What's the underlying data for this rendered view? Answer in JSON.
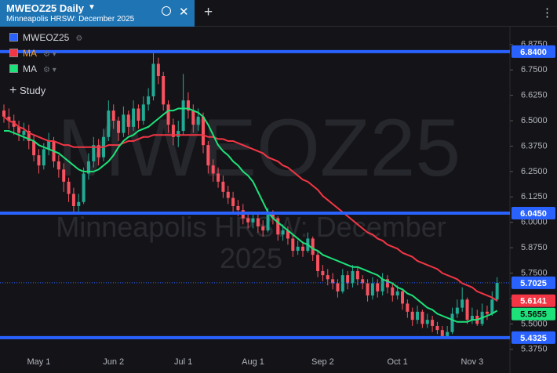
{
  "header": {
    "symbol_title": "MWEOZ25 Daily",
    "subtitle": "Minneapolis HRSW: December 2025"
  },
  "legend": {
    "study": "Study"
  },
  "watermark": {
    "symbol": "MWEOZ25",
    "name": "Minneapolis HRSW: December 2025"
  },
  "chart_data": {
    "type": "candlestick",
    "categories": [
      null,
      null,
      null,
      null,
      null,
      null,
      null,
      "May 1",
      null,
      null,
      null,
      null,
      null,
      null,
      null,
      null,
      null,
      null,
      null,
      null,
      null,
      null,
      "Jun 2",
      null,
      null,
      null,
      null,
      null,
      null,
      null,
      null,
      null,
      null,
      null,
      null,
      null,
      "Jul 1",
      null,
      null,
      null,
      null,
      null,
      null,
      null,
      null,
      null,
      null,
      null,
      null,
      null,
      "Aug 1",
      null,
      null,
      null,
      null,
      null,
      null,
      null,
      null,
      null,
      null,
      null,
      null,
      null,
      "Sep 2",
      null,
      null,
      null,
      null,
      null,
      null,
      null,
      null,
      null,
      null,
      null,
      null,
      null,
      null,
      "Oct 1",
      null,
      null,
      null,
      null,
      null,
      null,
      null,
      null,
      null,
      null,
      null,
      null,
      null,
      null,
      "Nov 3",
      null,
      null,
      null,
      null,
      null
    ],
    "up_color": "#22ab94",
    "down_color": "#f7525f",
    "series": [
      {
        "name": "MWEOZ25",
        "color": "#2962ff",
        "open": [
          6.55,
          6.52,
          6.5,
          6.47,
          6.43,
          6.45,
          6.4,
          6.33,
          6.28,
          6.36,
          6.4,
          6.3,
          6.26,
          6.2,
          6.14,
          6.08,
          6.1,
          6.24,
          6.3,
          6.38,
          6.32,
          6.42,
          6.55,
          6.5,
          6.44,
          6.53,
          6.47,
          6.56,
          6.5,
          6.58,
          6.62,
          6.78,
          6.72,
          6.58,
          6.48,
          6.42,
          6.45,
          6.6,
          6.55,
          6.48,
          6.52,
          6.38,
          6.28,
          6.24,
          6.2,
          6.15,
          6.12,
          6.08,
          6.06,
          6.02,
          6.0,
          6.02,
          5.98,
          5.96,
          6.04,
          6.02,
          5.94,
          5.96,
          5.92,
          5.86,
          5.88,
          5.86,
          5.92,
          5.84,
          5.76,
          5.74,
          5.72,
          5.7,
          5.66,
          5.74,
          5.7,
          5.76,
          5.72,
          5.7,
          5.64,
          5.7,
          5.66,
          5.72,
          5.68,
          5.64,
          5.66,
          5.6,
          5.56,
          5.52,
          5.56,
          5.5,
          5.52,
          5.49,
          5.47,
          5.44,
          5.46,
          5.55,
          5.58,
          5.62,
          5.52,
          5.54,
          5.5,
          5.56,
          5.55,
          5.62
        ],
        "high": [
          6.58,
          6.56,
          6.53,
          6.5,
          6.49,
          6.48,
          6.43,
          6.36,
          6.39,
          6.44,
          6.42,
          6.33,
          6.29,
          6.22,
          6.17,
          6.14,
          6.27,
          6.34,
          6.42,
          6.41,
          6.46,
          6.6,
          6.58,
          6.52,
          6.57,
          6.55,
          6.6,
          6.58,
          6.62,
          6.66,
          6.84,
          6.81,
          6.74,
          6.6,
          6.51,
          6.5,
          6.73,
          6.64,
          6.58,
          6.56,
          6.54,
          6.4,
          6.31,
          6.27,
          6.23,
          6.18,
          6.15,
          6.11,
          6.09,
          6.05,
          6.05,
          6.04,
          6.01,
          6.07,
          6.06,
          6.03,
          5.99,
          5.98,
          5.94,
          5.91,
          5.9,
          5.95,
          5.93,
          5.86,
          5.79,
          5.77,
          5.75,
          5.72,
          5.77,
          5.76,
          5.79,
          5.78,
          5.74,
          5.72,
          5.73,
          5.72,
          5.75,
          5.74,
          5.7,
          5.69,
          5.67,
          5.62,
          5.58,
          5.59,
          5.57,
          5.55,
          5.54,
          5.51,
          5.49,
          5.49,
          5.58,
          5.62,
          5.68,
          5.63,
          5.58,
          5.57,
          5.6,
          5.59,
          5.66,
          5.73
        ],
        "low": [
          6.49,
          6.46,
          6.43,
          6.4,
          6.4,
          6.36,
          6.3,
          6.24,
          6.26,
          6.33,
          6.27,
          6.22,
          6.15,
          6.1,
          6.05,
          6.05,
          6.09,
          6.21,
          6.27,
          6.28,
          6.3,
          6.4,
          6.46,
          6.4,
          6.42,
          6.43,
          6.45,
          6.46,
          6.48,
          6.55,
          6.6,
          6.68,
          6.55,
          6.44,
          6.38,
          6.37,
          6.43,
          6.51,
          6.44,
          6.45,
          6.34,
          6.24,
          6.2,
          6.17,
          6.12,
          6.09,
          6.05,
          6.03,
          5.99,
          5.97,
          5.97,
          5.95,
          5.93,
          5.95,
          5.99,
          5.91,
          5.91,
          5.89,
          5.83,
          5.84,
          5.83,
          5.85,
          5.81,
          5.73,
          5.71,
          5.69,
          5.67,
          5.63,
          5.65,
          5.67,
          5.68,
          5.69,
          5.67,
          5.61,
          5.62,
          5.63,
          5.64,
          5.65,
          5.61,
          5.62,
          5.57,
          5.53,
          5.49,
          5.5,
          5.48,
          5.48,
          5.46,
          5.45,
          5.43,
          5.43,
          5.45,
          5.53,
          5.56,
          5.5,
          5.5,
          5.49,
          5.49,
          5.52,
          5.54,
          5.61
        ],
        "close": [
          6.52,
          6.5,
          6.47,
          6.44,
          6.45,
          6.4,
          6.33,
          6.28,
          6.36,
          6.4,
          6.3,
          6.26,
          6.2,
          6.14,
          6.08,
          6.1,
          6.24,
          6.3,
          6.38,
          6.32,
          6.42,
          6.55,
          6.5,
          6.44,
          6.53,
          6.47,
          6.56,
          6.5,
          6.58,
          6.62,
          6.78,
          6.72,
          6.58,
          6.48,
          6.42,
          6.45,
          6.6,
          6.55,
          6.48,
          6.52,
          6.38,
          6.28,
          6.24,
          6.2,
          6.15,
          6.12,
          6.08,
          6.06,
          6.02,
          6.0,
          6.02,
          5.98,
          5.96,
          6.04,
          6.02,
          5.94,
          5.96,
          5.92,
          5.86,
          5.88,
          5.86,
          5.92,
          5.84,
          5.76,
          5.74,
          5.72,
          5.7,
          5.66,
          5.74,
          5.7,
          5.76,
          5.72,
          5.7,
          5.64,
          5.7,
          5.66,
          5.72,
          5.68,
          5.64,
          5.66,
          5.6,
          5.56,
          5.52,
          5.56,
          5.5,
          5.52,
          5.49,
          5.47,
          5.44,
          5.46,
          5.55,
          5.58,
          5.62,
          5.52,
          5.54,
          5.5,
          5.56,
          5.55,
          5.62,
          5.7025
        ]
      },
      {
        "name": "MA",
        "color": "#f23645",
        "text_color": "#f0a030",
        "values": [
          6.52,
          6.5,
          6.49,
          6.47,
          6.46,
          6.44,
          6.43,
          6.42,
          6.41,
          6.4,
          6.4,
          6.39,
          6.38,
          6.38,
          6.37,
          6.37,
          6.37,
          6.37,
          6.37,
          6.37,
          6.37,
          6.38,
          6.38,
          6.38,
          6.39,
          6.4,
          6.4,
          6.41,
          6.42,
          6.42,
          6.43,
          6.43,
          6.43,
          6.43,
          6.43,
          6.43,
          6.43,
          6.43,
          6.43,
          6.43,
          6.43,
          6.42,
          6.42,
          6.41,
          6.41,
          6.4,
          6.4,
          6.39,
          6.38,
          6.37,
          6.36,
          6.35,
          6.34,
          6.32,
          6.31,
          6.3,
          6.28,
          6.27,
          6.25,
          6.23,
          6.21,
          6.2,
          6.18,
          6.16,
          6.13,
          6.11,
          6.09,
          6.07,
          6.05,
          6.03,
          6.01,
          5.99,
          5.97,
          5.95,
          5.94,
          5.92,
          5.91,
          5.89,
          5.88,
          5.87,
          5.85,
          5.84,
          5.83,
          5.81,
          5.8,
          5.79,
          5.78,
          5.77,
          5.75,
          5.74,
          5.73,
          5.72,
          5.7,
          5.69,
          5.68,
          5.66,
          5.65,
          5.64,
          5.63,
          5.6141
        ]
      },
      {
        "name": "MA",
        "color": "#1de27a",
        "text_color": "#d1d4dc",
        "values": [
          6.45,
          6.45,
          6.44,
          6.43,
          6.42,
          6.41,
          6.4,
          6.38,
          6.37,
          6.36,
          6.35,
          6.34,
          6.32,
          6.3,
          6.28,
          6.26,
          6.25,
          6.25,
          6.25,
          6.26,
          6.28,
          6.3,
          6.33,
          6.37,
          6.4,
          6.42,
          6.43,
          6.45,
          6.46,
          6.47,
          6.49,
          6.51,
          6.53,
          6.55,
          6.55,
          6.56,
          6.56,
          6.56,
          6.55,
          6.54,
          6.52,
          6.48,
          6.43,
          6.38,
          6.35,
          6.33,
          6.3,
          6.28,
          6.25,
          6.23,
          6.2,
          6.15,
          6.1,
          6.05,
          6.02,
          6.0,
          5.98,
          5.96,
          5.94,
          5.92,
          5.9,
          5.89,
          5.87,
          5.86,
          5.84,
          5.83,
          5.82,
          5.81,
          5.8,
          5.79,
          5.78,
          5.78,
          5.77,
          5.76,
          5.75,
          5.74,
          5.72,
          5.71,
          5.7,
          5.68,
          5.67,
          5.65,
          5.64,
          5.62,
          5.6,
          5.58,
          5.57,
          5.55,
          5.54,
          5.53,
          5.52,
          5.51,
          5.51,
          5.51,
          5.52,
          5.52,
          5.53,
          5.54,
          5.55,
          5.5655
        ]
      }
    ],
    "ylim": [
      5.351,
      6.963
    ],
    "yticks": [
      {
        "value": 6.875,
        "label": "6.8750"
      },
      {
        "value": 6.75,
        "label": "6.7500"
      },
      {
        "value": 6.625,
        "label": "6.6250"
      },
      {
        "value": 6.5,
        "label": "6.5000"
      },
      {
        "value": 6.375,
        "label": "6.3750"
      },
      {
        "value": 6.25,
        "label": "6.2500"
      },
      {
        "value": 6.125,
        "label": "6.1250"
      },
      {
        "value": 6,
        "label": "6.0000"
      },
      {
        "value": 5.875,
        "label": "5.8750"
      },
      {
        "value": 5.75,
        "label": "5.7500"
      },
      {
        "value": 5.625,
        "label": "5.6250"
      },
      {
        "value": 5.5,
        "label": "5.5000"
      },
      {
        "value": 5.375,
        "label": "5.3750"
      }
    ],
    "price_lines": [
      {
        "value": 6.84,
        "label": "6.8400"
      },
      {
        "value": 6.045,
        "label": "6.0450"
      },
      {
        "value": 5.4325,
        "label": "5.4325"
      }
    ]
  }
}
